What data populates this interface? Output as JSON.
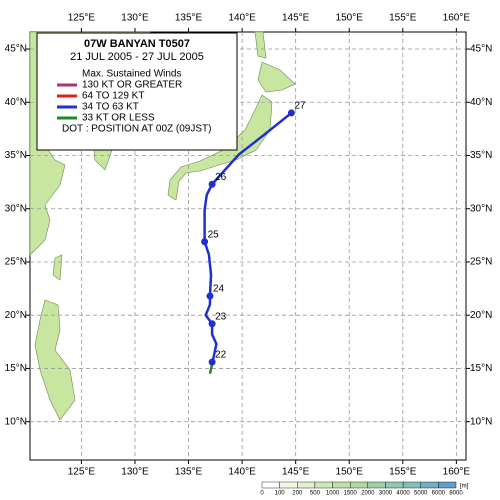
{
  "chart_data": {
    "type": "track-map",
    "title": "07W  BANYAN  T0507",
    "subtitle": "21 JUL 2005 - 27 JUL 2005",
    "legend_title": "Max. Sustained Winds",
    "legend": [
      {
        "name": "130 KT OR GREATER",
        "color": "#b0307a"
      },
      {
        "name": "64 TO 129 KT",
        "color": "#e02020"
      },
      {
        "name": "34 TO 63 KT",
        "color": "#2030d0"
      },
      {
        "name": "33 KT OR LESS",
        "color": "#208a20"
      }
    ],
    "legend_note": "DOT : POSITION AT 00Z (09JST)",
    "xlim": [
      120.2,
      160.9
    ],
    "ylim": [
      6.4,
      46.6
    ],
    "xticks": [
      {
        "value": 125,
        "label": "125°E"
      },
      {
        "value": 130,
        "label": "130°E"
      },
      {
        "value": 135,
        "label": "135°E"
      },
      {
        "value": 140,
        "label": "140°E"
      },
      {
        "value": 145,
        "label": "145°E"
      },
      {
        "value": 150,
        "label": "150°E"
      },
      {
        "value": 155,
        "label": "155°E"
      },
      {
        "value": 160,
        "label": "160°E"
      }
    ],
    "yticks": [
      {
        "value": 10,
        "label": "10°N"
      },
      {
        "value": 15,
        "label": "15°N"
      },
      {
        "value": 20,
        "label": "20°N"
      },
      {
        "value": 25,
        "label": "25°N"
      },
      {
        "value": 30,
        "label": "30°N"
      },
      {
        "value": 35,
        "label": "35°N"
      },
      {
        "value": 40,
        "label": "40°N"
      },
      {
        "value": 45,
        "label": "45°N"
      }
    ],
    "grid": true,
    "track": [
      {
        "color": "#208a20",
        "lon": [
          137.0,
          137.2
        ],
        "lat": [
          14.5,
          15.4
        ]
      },
      {
        "color": "#2030d0",
        "lon": [
          137.2,
          137.6,
          137.2,
          137.2,
          136.6,
          137.0,
          137.0,
          137.1,
          136.9,
          136.5,
          136.5,
          136.7,
          137.2,
          139.7,
          142.0,
          144.6
        ],
        "lat": [
          15.4,
          17.3,
          18.2,
          19.2,
          20.0,
          21.0,
          21.8,
          23.8,
          25.7,
          26.9,
          29.9,
          31.3,
          32.3,
          35.1,
          36.9,
          39.0
        ]
      }
    ],
    "positions": [
      {
        "label": "22",
        "lon": 137.2,
        "lat": 15.6
      },
      {
        "label": "23",
        "lon": 137.2,
        "lat": 19.2
      },
      {
        "label": "24",
        "lon": 137.0,
        "lat": 21.8
      },
      {
        "label": "25",
        "lon": 136.5,
        "lat": 26.9
      },
      {
        "label": "26",
        "lon": 137.2,
        "lat": 32.3
      },
      {
        "label": "27",
        "lon": 144.6,
        "lat": 39.0
      }
    ],
    "colorbar_ticks": [
      0,
      100,
      200,
      500,
      1000,
      1500,
      2000,
      3000,
      4000,
      5000,
      6000,
      8000
    ],
    "colorbar_colors": [
      "#ffffff",
      "#f0f8e8",
      "#e0f0d0",
      "#cfe8b8",
      "#bfe0a8",
      "#b0d8a0",
      "#a0d0a8",
      "#90c8b0",
      "#80c0b8",
      "#70b0c0",
      "#60a0c8"
    ],
    "colorbar_unit": "[m]"
  }
}
